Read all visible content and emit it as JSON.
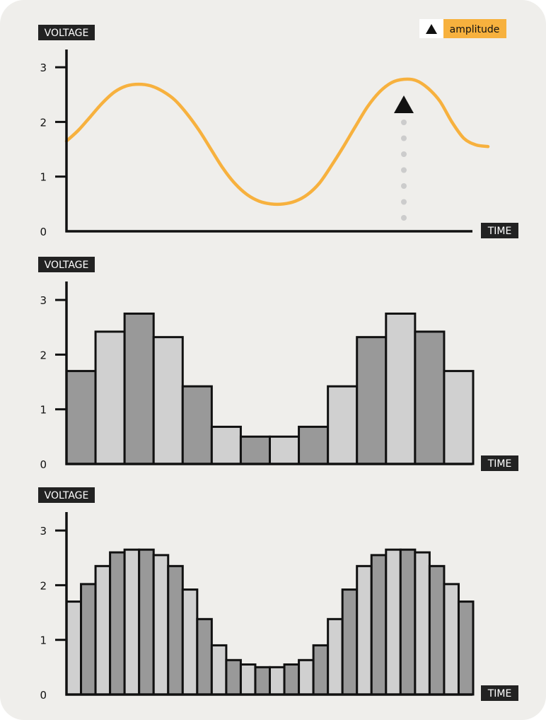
{
  "colors": {
    "background": "#efeeeb",
    "line": "#f7b13e",
    "bar_dark": "#999999",
    "bar_light": "#d0d0d0",
    "axis": "#111111",
    "tag_bg": "#222222",
    "dotted_marker": "#cccccc",
    "legend_bg": "#f7b13e"
  },
  "legend": {
    "label": "amplitude",
    "icon": "triangle-up-icon"
  },
  "chart_data": [
    {
      "type": "line",
      "ylabel": "VOLTAGE",
      "xlabel": "TIME",
      "ylim": [
        0,
        3.4
      ],
      "yticks": [
        0,
        1,
        2,
        3
      ],
      "series": [
        {
          "values": [
            1.65,
            1.85,
            2.1,
            2.35,
            2.55,
            2.66,
            2.69,
            2.66,
            2.56,
            2.4,
            2.15,
            1.85,
            1.5,
            1.15,
            0.87,
            0.67,
            0.55,
            0.5,
            0.5,
            0.55,
            0.67,
            0.88,
            1.2,
            1.55,
            1.92,
            2.28,
            2.55,
            2.72,
            2.78,
            2.76,
            2.62,
            2.38,
            2.0,
            1.7,
            1.58,
            1.55
          ]
        }
      ],
      "annotation": {
        "x_index": 28,
        "marker": "triangle-up-icon"
      }
    },
    {
      "type": "bar",
      "ylabel": "VOLTAGE",
      "xlabel": "TIME",
      "ylim": [
        0,
        3.4
      ],
      "yticks": [
        0,
        1,
        2,
        3
      ],
      "values": [
        1.7,
        2.42,
        2.75,
        2.32,
        1.42,
        0.68,
        0.5,
        0.5,
        0.68,
        1.42,
        2.32,
        2.75,
        2.42,
        1.7
      ]
    },
    {
      "type": "bar",
      "ylabel": "VOLTAGE",
      "xlabel": "TIME",
      "ylim": [
        0,
        3.4
      ],
      "yticks": [
        0,
        1,
        2,
        3
      ],
      "values": [
        1.7,
        2.02,
        2.35,
        2.6,
        2.65,
        2.65,
        2.55,
        2.35,
        1.92,
        1.38,
        0.9,
        0.63,
        0.55,
        0.5,
        0.5,
        0.55,
        0.63,
        0.9,
        1.38,
        1.92,
        2.35,
        2.55,
        2.65,
        2.65,
        2.6,
        2.35,
        2.02,
        1.7
      ]
    }
  ]
}
